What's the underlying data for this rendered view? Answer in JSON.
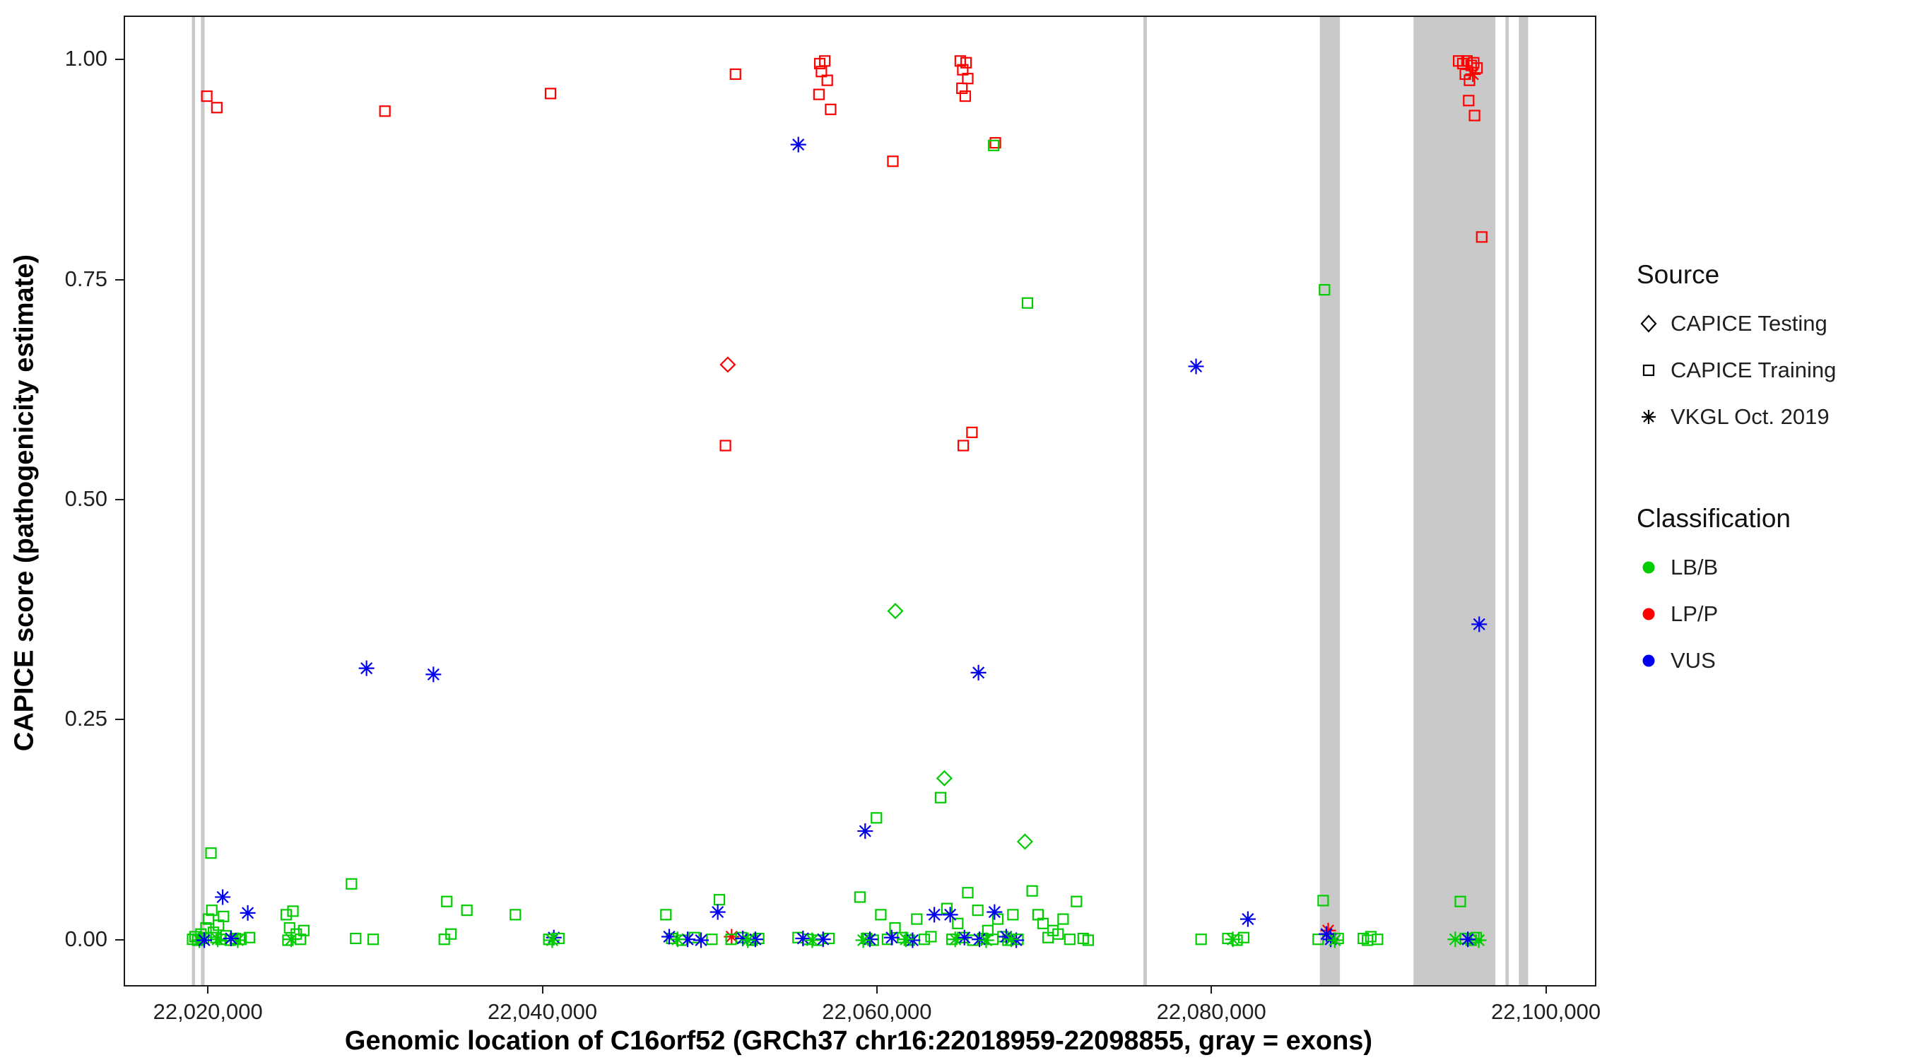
{
  "legend": {
    "source": {
      "title": "Source",
      "items": [
        {
          "label": "CAPICE Testing",
          "marker": "diamond"
        },
        {
          "label": "CAPICE Training",
          "marker": "square"
        },
        {
          "label": "VKGL Oct. 2019",
          "marker": "asterisk"
        }
      ]
    },
    "classification": {
      "title": "Classification",
      "items": [
        {
          "label": "LB/B",
          "color": "#00CC00"
        },
        {
          "label": "LP/P",
          "color": "#FF0000"
        },
        {
          "label": "VUS",
          "color": "#0000EE"
        }
      ]
    }
  },
  "chart_data": {
    "type": "scatter",
    "title": "",
    "xlabel": "Genomic location of C16orf52 (GRCh37 chr16:22018959-22098855, gray = exons)",
    "ylabel": "CAPICE score (pathogenicity estimate)",
    "xlim": [
      22014964,
      22102850
    ],
    "ylim": [
      -0.05,
      1.05
    ],
    "grid": false,
    "legend_position": "right",
    "x_ticks": [
      {
        "value": 22020000,
        "label": "22,020,000"
      },
      {
        "value": 22040000,
        "label": "22,040,000"
      },
      {
        "value": 22060000,
        "label": "22,060,000"
      },
      {
        "value": 22080000,
        "label": "22,080,000"
      },
      {
        "value": 22100000,
        "label": "22,100,000"
      }
    ],
    "y_ticks": [
      {
        "value": 0.0,
        "label": "0.00"
      },
      {
        "value": 0.25,
        "label": "0.25"
      },
      {
        "value": 0.5,
        "label": "0.50"
      },
      {
        "value": 0.75,
        "label": "0.75"
      },
      {
        "value": 1.0,
        "label": "1.00"
      }
    ],
    "exon_color": "#C9C9C9",
    "exons": [
      [
        22018959,
        22019150
      ],
      [
        22019500,
        22019720
      ],
      [
        22075850,
        22076060
      ],
      [
        22086400,
        22087600
      ],
      [
        22092000,
        22096900
      ],
      [
        22097500,
        22097700
      ],
      [
        22098300,
        22098855
      ]
    ],
    "source_codes": {
      "T": "CAPICE Testing",
      "R": "CAPICE Training",
      "V": "VKGL Oct. 2019"
    },
    "classification_codes": {
      "B": "LB/B",
      "P": "LP/P",
      "U": "VUS"
    },
    "marker_by_source": {
      "CAPICE Testing": "diamond",
      "CAPICE Training": "square",
      "VKGL Oct. 2019": "asterisk"
    },
    "colors_by_classification": {
      "LB/B": "#00CC00",
      "LP/P": "#FF0000",
      "VUS": "#0000EE"
    },
    "point_format": [
      "x",
      "y",
      "source_code",
      "classification_code"
    ],
    "points": [
      [
        22019850,
        0.96,
        "R",
        "P"
      ],
      [
        22020450,
        0.947,
        "R",
        "P"
      ],
      [
        22030500,
        0.943,
        "R",
        "P"
      ],
      [
        22040400,
        0.963,
        "R",
        "P"
      ],
      [
        22051460,
        0.985,
        "R",
        "P"
      ],
      [
        22050860,
        0.563,
        "R",
        "P"
      ],
      [
        22051000,
        0.655,
        "T",
        "P"
      ],
      [
        22056500,
        0.997,
        "R",
        "P"
      ],
      [
        22056800,
        1.0,
        "R",
        "P"
      ],
      [
        22056600,
        0.988,
        "R",
        "P"
      ],
      [
        22056950,
        0.978,
        "R",
        "P"
      ],
      [
        22056450,
        0.962,
        "R",
        "P"
      ],
      [
        22057150,
        0.945,
        "R",
        "P"
      ],
      [
        22060870,
        0.886,
        "R",
        "P"
      ],
      [
        22064900,
        1.0,
        "R",
        "P"
      ],
      [
        22065250,
        0.998,
        "R",
        "P"
      ],
      [
        22065050,
        0.99,
        "R",
        "P"
      ],
      [
        22065350,
        0.98,
        "R",
        "P"
      ],
      [
        22065000,
        0.969,
        "R",
        "P"
      ],
      [
        22065200,
        0.96,
        "R",
        "P"
      ],
      [
        22065080,
        0.563,
        "R",
        "P"
      ],
      [
        22065600,
        0.578,
        "R",
        "P"
      ],
      [
        22067000,
        0.907,
        "R",
        "P"
      ],
      [
        22066900,
        0.904,
        "R",
        "B"
      ],
      [
        22094700,
        1.0,
        "R",
        "P"
      ],
      [
        22094950,
        0.997,
        "R",
        "P"
      ],
      [
        22095200,
        1.0,
        "R",
        "P"
      ],
      [
        22095450,
        0.995,
        "R",
        "P"
      ],
      [
        22095100,
        0.985,
        "R",
        "P"
      ],
      [
        22095350,
        0.978,
        "R",
        "P"
      ],
      [
        22095600,
        0.998,
        "R",
        "P"
      ],
      [
        22095800,
        0.992,
        "R",
        "P"
      ],
      [
        22095300,
        0.955,
        "R",
        "P"
      ],
      [
        22095650,
        0.938,
        "R",
        "P"
      ],
      [
        22096080,
        0.8,
        "R",
        "P"
      ],
      [
        22095550,
        0.985,
        "V",
        "P"
      ],
      [
        22051230,
        0.005,
        "V",
        "P"
      ],
      [
        22086900,
        0.012,
        "V",
        "P"
      ],
      [
        22061020,
        0.375,
        "T",
        "B"
      ],
      [
        22063950,
        0.185,
        "T",
        "B"
      ],
      [
        22068770,
        0.113,
        "T",
        "B"
      ],
      [
        22068920,
        0.725,
        "R",
        "B"
      ],
      [
        22086680,
        0.74,
        "R",
        "B"
      ],
      [
        22063720,
        0.163,
        "R",
        "B"
      ],
      [
        22059890,
        0.14,
        "R",
        "B"
      ],
      [
        22055220,
        0.905,
        "V",
        "U"
      ],
      [
        22079000,
        0.653,
        "V",
        "U"
      ],
      [
        22095930,
        0.36,
        "V",
        "U"
      ],
      [
        22029400,
        0.31,
        "V",
        "U"
      ],
      [
        22033400,
        0.303,
        "V",
        "U"
      ],
      [
        22065990,
        0.305,
        "V",
        "U"
      ],
      [
        22059215,
        0.125,
        "V",
        "U"
      ],
      [
        22019000,
        0.002,
        "R",
        "B"
      ],
      [
        22019150,
        0.005,
        "R",
        "B"
      ],
      [
        22019300,
        0.001,
        "R",
        "B"
      ],
      [
        22019500,
        0.008,
        "R",
        "B"
      ],
      [
        22019650,
        0.003,
        "R",
        "B"
      ],
      [
        22019800,
        0.015,
        "R",
        "B"
      ],
      [
        22019950,
        0.025,
        "R",
        "B"
      ],
      [
        22020100,
        0.1,
        "R",
        "B"
      ],
      [
        22020150,
        0.035,
        "R",
        "B"
      ],
      [
        22020250,
        0.01,
        "R",
        "B"
      ],
      [
        22020400,
        0.004,
        "R",
        "B"
      ],
      [
        22020550,
        0.018,
        "R",
        "B"
      ],
      [
        22020700,
        0.002,
        "R",
        "B"
      ],
      [
        22020850,
        0.028,
        "R",
        "B"
      ],
      [
        22021000,
        0.006,
        "R",
        "B"
      ],
      [
        22021250,
        0.001,
        "R",
        "B"
      ],
      [
        22021550,
        0.003,
        "R",
        "B"
      ],
      [
        22021900,
        0.002,
        "R",
        "B"
      ],
      [
        22022400,
        0.004,
        "R",
        "B"
      ],
      [
        22019400,
        0.001,
        "V",
        "B"
      ],
      [
        22020500,
        0.002,
        "V",
        "B"
      ],
      [
        22021700,
        0.001,
        "V",
        "B"
      ],
      [
        22020800,
        0.05,
        "V",
        "U"
      ],
      [
        22022300,
        0.032,
        "V",
        "U"
      ],
      [
        22021300,
        0.003,
        "V",
        "U"
      ],
      [
        22019700,
        0.001,
        "V",
        "U"
      ],
      [
        22024600,
        0.03,
        "R",
        "B"
      ],
      [
        22024800,
        0.015,
        "R",
        "B"
      ],
      [
        22025000,
        0.034,
        "R",
        "B"
      ],
      [
        22025200,
        0.008,
        "R",
        "B"
      ],
      [
        22025450,
        0.002,
        "R",
        "B"
      ],
      [
        22024700,
        0.001,
        "R",
        "B"
      ],
      [
        22025650,
        0.012,
        "R",
        "B"
      ],
      [
        22024900,
        0.002,
        "V",
        "B"
      ],
      [
        22028500,
        0.065,
        "R",
        "B"
      ],
      [
        22028750,
        0.003,
        "R",
        "B"
      ],
      [
        22029800,
        0.002,
        "R",
        "B"
      ],
      [
        22034200,
        0.045,
        "R",
        "B"
      ],
      [
        22035400,
        0.035,
        "R",
        "B"
      ],
      [
        22034450,
        0.008,
        "R",
        "B"
      ],
      [
        22034050,
        0.002,
        "R",
        "B"
      ],
      [
        22038300,
        0.03,
        "R",
        "B"
      ],
      [
        22040600,
        0.004,
        "V",
        "U"
      ],
      [
        22040300,
        0.002,
        "R",
        "B"
      ],
      [
        22040900,
        0.003,
        "R",
        "B"
      ],
      [
        22040500,
        0.001,
        "V",
        "B"
      ],
      [
        22047300,
        0.03,
        "R",
        "B"
      ],
      [
        22047650,
        0.003,
        "R",
        "B"
      ],
      [
        22048250,
        0.001,
        "R",
        "B"
      ],
      [
        22049000,
        0.004,
        "R",
        "B"
      ],
      [
        22050500,
        0.047,
        "R",
        "B"
      ],
      [
        22050050,
        0.002,
        "R",
        "B"
      ],
      [
        22047500,
        0.005,
        "V",
        "U"
      ],
      [
        22048600,
        0.002,
        "V",
        "U"
      ],
      [
        22050400,
        0.033,
        "V",
        "U"
      ],
      [
        22049400,
        0.001,
        "V",
        "U"
      ],
      [
        22048000,
        0.002,
        "V",
        "B"
      ],
      [
        22051200,
        0.002,
        "R",
        "B"
      ],
      [
        22051800,
        0.004,
        "R",
        "B"
      ],
      [
        22052450,
        0.001,
        "R",
        "B"
      ],
      [
        22052850,
        0.003,
        "R",
        "B"
      ],
      [
        22051900,
        0.003,
        "V",
        "U"
      ],
      [
        22052650,
        0.002,
        "V",
        "U"
      ],
      [
        22052200,
        0.001,
        "V",
        "B"
      ],
      [
        22055200,
        0.004,
        "R",
        "B"
      ],
      [
        22055800,
        0.002,
        "R",
        "B"
      ],
      [
        22056400,
        0.001,
        "R",
        "B"
      ],
      [
        22057050,
        0.003,
        "R",
        "B"
      ],
      [
        22055500,
        0.003,
        "V",
        "U"
      ],
      [
        22056700,
        0.002,
        "V",
        "U"
      ],
      [
        22056050,
        0.001,
        "V",
        "B"
      ],
      [
        22058900,
        0.05,
        "R",
        "B"
      ],
      [
        22059300,
        0.003,
        "R",
        "B"
      ],
      [
        22059700,
        0.001,
        "R",
        "B"
      ],
      [
        22060150,
        0.03,
        "R",
        "B"
      ],
      [
        22060550,
        0.002,
        "R",
        "B"
      ],
      [
        22061000,
        0.015,
        "R",
        "B"
      ],
      [
        22061450,
        0.004,
        "R",
        "B"
      ],
      [
        22061850,
        0.001,
        "R",
        "B"
      ],
      [
        22062300,
        0.025,
        "R",
        "B"
      ],
      [
        22062750,
        0.002,
        "R",
        "B"
      ],
      [
        22063150,
        0.005,
        "R",
        "B"
      ],
      [
        22059500,
        0.002,
        "V",
        "U"
      ],
      [
        22060800,
        0.004,
        "V",
        "U"
      ],
      [
        22062050,
        0.001,
        "V",
        "U"
      ],
      [
        22063350,
        0.03,
        "V",
        "U"
      ],
      [
        22059100,
        0.001,
        "V",
        "B"
      ],
      [
        22061650,
        0.002,
        "V",
        "B"
      ],
      [
        22064100,
        0.037,
        "R",
        "B"
      ],
      [
        22064400,
        0.002,
        "R",
        "B"
      ],
      [
        22064750,
        0.02,
        "R",
        "B"
      ],
      [
        22065050,
        0.004,
        "R",
        "B"
      ],
      [
        22065350,
        0.055,
        "R",
        "B"
      ],
      [
        22065650,
        0.001,
        "R",
        "B"
      ],
      [
        22065950,
        0.035,
        "R",
        "B"
      ],
      [
        22066250,
        0.003,
        "R",
        "B"
      ],
      [
        22066550,
        0.012,
        "R",
        "B"
      ],
      [
        22066850,
        0.002,
        "R",
        "B"
      ],
      [
        22067150,
        0.025,
        "R",
        "B"
      ],
      [
        22067450,
        0.005,
        "R",
        "B"
      ],
      [
        22067750,
        0.001,
        "R",
        "B"
      ],
      [
        22068050,
        0.03,
        "R",
        "B"
      ],
      [
        22068350,
        0.002,
        "R",
        "B"
      ],
      [
        22064300,
        0.03,
        "V",
        "U"
      ],
      [
        22065150,
        0.004,
        "V",
        "U"
      ],
      [
        22066050,
        0.002,
        "V",
        "U"
      ],
      [
        22066950,
        0.033,
        "V",
        "U"
      ],
      [
        22067650,
        0.005,
        "V",
        "U"
      ],
      [
        22068250,
        0.001,
        "V",
        "U"
      ],
      [
        22064600,
        0.002,
        "V",
        "B"
      ],
      [
        22066450,
        0.001,
        "V",
        "B"
      ],
      [
        22067950,
        0.002,
        "V",
        "B"
      ],
      [
        22069200,
        0.057,
        "R",
        "B"
      ],
      [
        22069550,
        0.03,
        "R",
        "B"
      ],
      [
        22069850,
        0.02,
        "R",
        "B"
      ],
      [
        22070150,
        0.004,
        "R",
        "B"
      ],
      [
        22070450,
        0.012,
        "R",
        "B"
      ],
      [
        22070750,
        0.008,
        "R",
        "B"
      ],
      [
        22071050,
        0.025,
        "R",
        "B"
      ],
      [
        22071450,
        0.002,
        "R",
        "B"
      ],
      [
        22071850,
        0.045,
        "R",
        "B"
      ],
      [
        22072250,
        0.003,
        "R",
        "B"
      ],
      [
        22072550,
        0.001,
        "R",
        "B"
      ],
      [
        22079300,
        0.002,
        "R",
        "B"
      ],
      [
        22080900,
        0.003,
        "R",
        "B"
      ],
      [
        22081450,
        0.001,
        "R",
        "B"
      ],
      [
        22081850,
        0.004,
        "R",
        "B"
      ],
      [
        22081200,
        0.002,
        "V",
        "B"
      ],
      [
        22082100,
        0.025,
        "V",
        "U"
      ],
      [
        22086600,
        0.046,
        "R",
        "B"
      ],
      [
        22086300,
        0.002,
        "R",
        "B"
      ],
      [
        22087500,
        0.003,
        "R",
        "B"
      ],
      [
        22086800,
        0.008,
        "V",
        "U"
      ],
      [
        22087050,
        0.002,
        "V",
        "U"
      ],
      [
        22087300,
        0.001,
        "V",
        "B"
      ],
      [
        22089000,
        0.003,
        "R",
        "B"
      ],
      [
        22089450,
        0.005,
        "R",
        "B"
      ],
      [
        22089850,
        0.002,
        "R",
        "B"
      ],
      [
        22089250,
        0.001,
        "R",
        "B"
      ],
      [
        22094800,
        0.045,
        "R",
        "B"
      ],
      [
        22095100,
        0.003,
        "R",
        "B"
      ],
      [
        22095450,
        0.001,
        "R",
        "B"
      ],
      [
        22095750,
        0.004,
        "R",
        "B"
      ],
      [
        22094500,
        0.002,
        "V",
        "B"
      ],
      [
        22095900,
        0.001,
        "V",
        "B"
      ],
      [
        22095250,
        0.002,
        "V",
        "U"
      ]
    ]
  }
}
